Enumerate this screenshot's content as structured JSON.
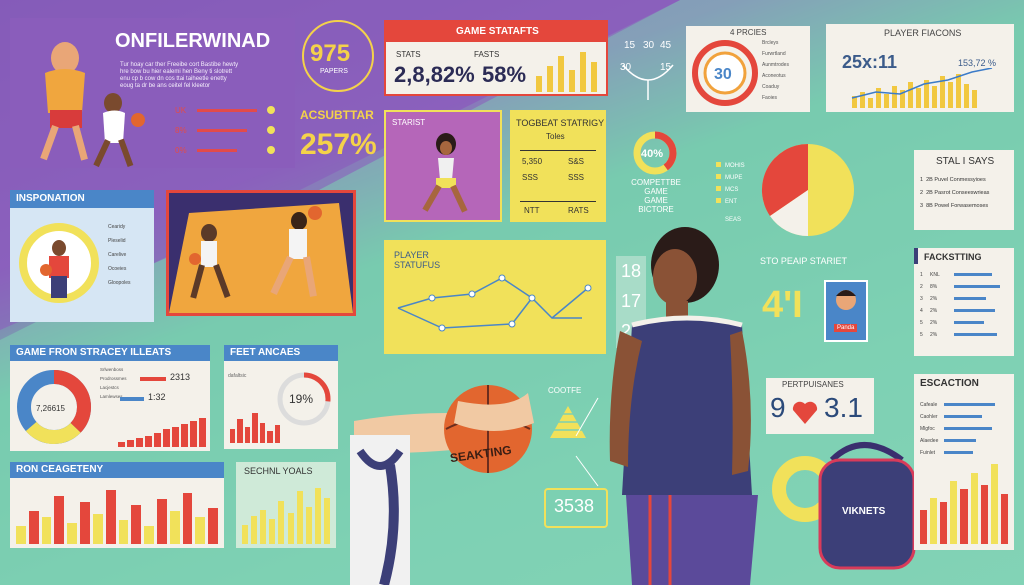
{
  "hero": {
    "title": "ONFILERWINAD",
    "body_lines": [
      "Tur hoay car ther Freeibe cort Bastibe hewty",
      "hre bow bu hier ealemi hen Beny ti slotrett",
      "enu cp b cow dn cos ttai taiheetle enetty",
      "eoug ta dr be ans ceitel fel kleetor"
    ],
    "pct_labels": [
      "UK",
      "8%",
      "0%"
    ]
  },
  "score_tile": {
    "value": "975",
    "caption": "PAPERS"
  },
  "big_stat": {
    "label": "ACSUBTTAR",
    "value": "257%"
  },
  "game_stats": {
    "title": "GAME STATAFTS",
    "stats_label": "STATS",
    "fasts_label": "FASTS",
    "stats_value": "2,8,82%",
    "fasts_value": "58%"
  },
  "bracket": {
    "labels": [
      "15",
      "30",
      "45",
      "30",
      "15"
    ]
  },
  "fnc": {
    "title": "4 PRCIES",
    "center": "30",
    "legend": [
      "Brcleys",
      "Furwrtland",
      "Aunmtrodes",
      "Aconeotus",
      "Coaduy",
      "Faoies"
    ]
  },
  "player_fiacons": {
    "title": "PLAYER FIACONS",
    "left_value": "25x:11",
    "right_value": "153,72 %"
  },
  "starist": {
    "label": "STARIST"
  },
  "togbeat": {
    "title": "TOGBEAT STATRIGY",
    "subtitle": "Toles",
    "row1": [
      "5,350",
      "S&S"
    ],
    "row2": [
      "SSS",
      "SSS"
    ],
    "foot": [
      "NTT",
      "RATS"
    ]
  },
  "donut40": {
    "value": "40%",
    "caption": [
      "COMPETTBE",
      "GAME",
      "GAME",
      "BICTORE"
    ]
  },
  "bullets": {
    "items": [
      "MOHIS",
      "MUPE",
      "MCS",
      "ENT"
    ],
    "foot": "SEAS"
  },
  "stal_says": {
    "title": "STAL I SAYS",
    "rows": [
      {
        "n": "1",
        "text": "2B  Puvel Conmessyioes"
      },
      {
        "n": "2",
        "text": "2B  Pasrot Conseeswrieas"
      },
      {
        "n": "3",
        "text": "8B  Powel Forwasemoses"
      }
    ]
  },
  "inspiration": {
    "title": "INSPONATION",
    "legend": [
      "Cearidy",
      "Pleselid",
      "Carelive",
      "Ocoeies",
      "Gloopoles"
    ]
  },
  "player_stat": {
    "title": "PLAYER",
    "subtitle": "STATUFUS"
  },
  "numbers_col": [
    "18",
    "17",
    "22"
  ],
  "sto_pepy": {
    "title": "STO PEAIP STARIET",
    "value": "4'I",
    "card_label": "Panda"
  },
  "facts": {
    "title": "FACKSTTING",
    "rows": [
      {
        "n": "1",
        "label": "KNL",
        "v": 0.7
      },
      {
        "n": "2",
        "label": "8%",
        "v": 0.85
      },
      {
        "n": "3",
        "label": "2%",
        "v": 0.6
      },
      {
        "n": "4",
        "label": "2%",
        "v": 0.75
      },
      {
        "n": "5",
        "label": "2%",
        "v": 0.55
      },
      {
        "n": "5",
        "label": "2%",
        "v": 0.8
      }
    ]
  },
  "game_frstr": {
    "title": "GAME FRON STRACEY ILLEATS",
    "center": "7,26615",
    "labels": [
      "Srlwenboss",
      "Prodrossmes",
      "Lacjestcs",
      "Lamlewses"
    ],
    "l1": "2313",
    "l2": "1:32",
    "bars": [
      0.15,
      0.2,
      0.25,
      0.3,
      0.4,
      0.5,
      0.55,
      0.65,
      0.72,
      0.8
    ]
  },
  "feet_ancats": {
    "title": "FEET ANCAES",
    "value": "19%",
    "caption": "dafaltsic",
    "bars": [
      0.35,
      0.6,
      0.4,
      0.75,
      0.5,
      0.3,
      0.45
    ]
  },
  "coote": {
    "label": "COOTFE"
  },
  "num3538": {
    "value": "3538"
  },
  "pert": {
    "title": "PERTPUISANES",
    "left": "9",
    "right": "3.1"
  },
  "escaction": {
    "title": "ESCACTION",
    "rows": [
      {
        "label": "Cafeale",
        "v": 0.8
      },
      {
        "label": "Caohler",
        "v": 0.6
      },
      {
        "label": "Mlgfoc",
        "v": 0.75
      },
      {
        "label": "Alaedee",
        "v": 0.5
      },
      {
        "label": "Fuinlet",
        "v": 0.45
      }
    ]
  },
  "ron_cat": {
    "title": "RON CEAGETENY",
    "bars": [
      0.3,
      0.55,
      0.45,
      0.8,
      0.35,
      0.7,
      0.5,
      0.9,
      0.4,
      0.65,
      0.3,
      0.75,
      0.55,
      0.85,
      0.45,
      0.6
    ]
  },
  "second_goals": {
    "title": "SECHNL YOALS",
    "bars": [
      0.3,
      0.45,
      0.55,
      0.4,
      0.7,
      0.5,
      0.85,
      0.6,
      0.9,
      0.75
    ]
  },
  "ball_label": "SEAKTING",
  "bag_label": "VIKNETS",
  "escaction_bars": [
    0.4,
    0.55,
    0.5,
    0.75,
    0.65,
    0.85,
    0.7,
    0.95,
    0.6
  ],
  "colors": {
    "purple": "#7d56b3",
    "teal": "#7cd0b2",
    "yellow": "#f1e15a",
    "red": "#e4473c",
    "navy": "#3c3f78",
    "blue": "#4a86c8"
  }
}
